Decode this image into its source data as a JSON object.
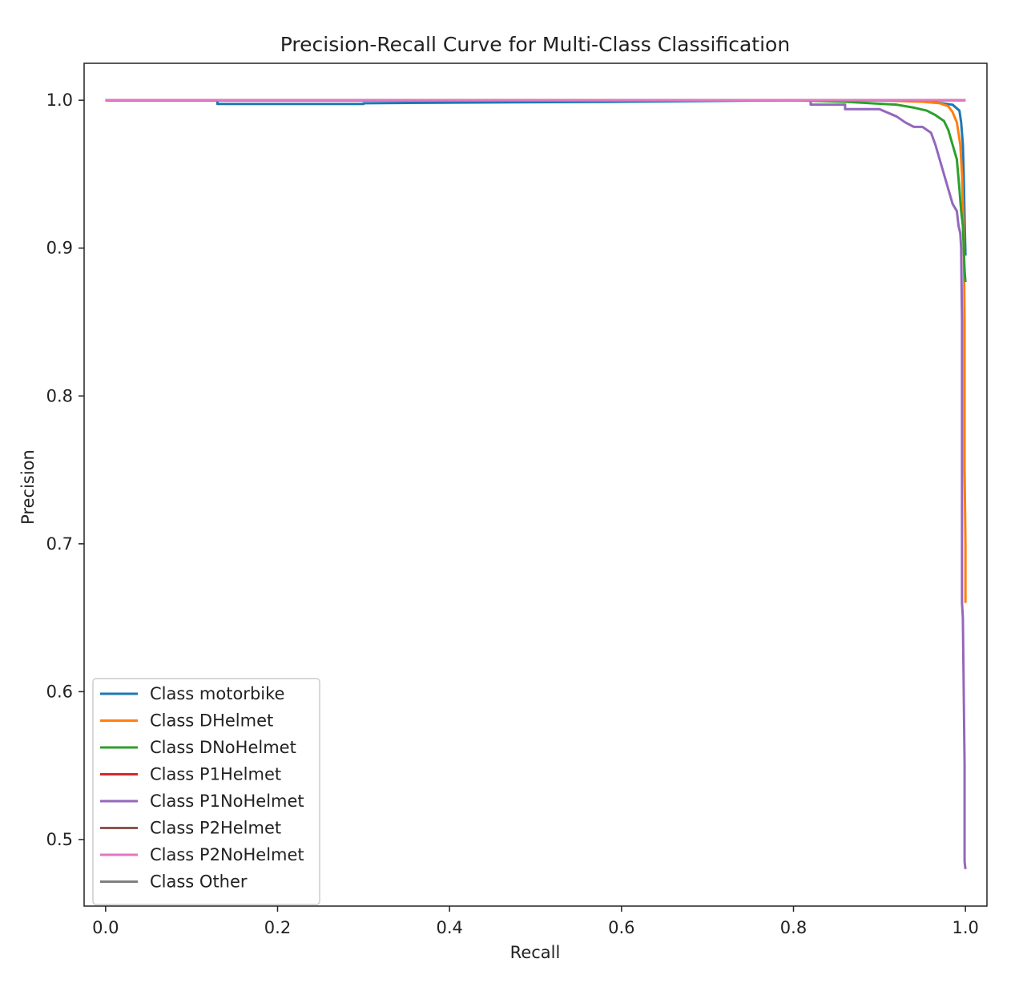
{
  "chart_data": {
    "type": "line",
    "title": "Precision-Recall Curve for Multi-Class Classification",
    "xlabel": "Recall",
    "ylabel": "Precision",
    "xlim": [
      -0.025,
      1.025
    ],
    "ylim": [
      0.455,
      1.025
    ],
    "xticks": [
      0.0,
      0.2,
      0.4,
      0.6,
      0.8,
      1.0
    ],
    "xtick_labels": [
      "0.0",
      "0.2",
      "0.4",
      "0.6",
      "0.8",
      "1.0"
    ],
    "yticks": [
      0.5,
      0.6,
      0.7,
      0.8,
      0.9,
      1.0
    ],
    "ytick_labels": [
      "0.5",
      "0.6",
      "0.7",
      "0.8",
      "0.9",
      "1.0"
    ],
    "grid": false,
    "legend_position": "lower-left",
    "series": [
      {
        "name": "Class motorbike",
        "color": "#1f77b4",
        "x": [
          0.0,
          0.13,
          0.13,
          0.3,
          0.3,
          0.6,
          0.8,
          0.9,
          0.96,
          0.985,
          0.993,
          0.995,
          0.997,
          0.998,
          0.999,
          1.0
        ],
        "y": [
          1.0,
          1.0,
          0.9975,
          0.9975,
          0.998,
          0.999,
          1.0,
          1.0,
          0.999,
          0.997,
          0.993,
          0.985,
          0.97,
          0.95,
          0.92,
          0.895
        ]
      },
      {
        "name": "Class DHelmet",
        "color": "#ff7f0e",
        "x": [
          0.0,
          0.5,
          0.8,
          0.9,
          0.95,
          0.97,
          0.98,
          0.985,
          0.99,
          0.994,
          0.996,
          0.997,
          0.998,
          0.999,
          0.999,
          1.0,
          1.0,
          1.0
        ],
        "y": [
          1.0,
          1.0,
          1.0,
          1.0,
          0.999,
          0.998,
          0.996,
          0.992,
          0.985,
          0.97,
          0.95,
          0.93,
          0.91,
          0.85,
          0.75,
          0.7,
          0.66,
          0.66
        ]
      },
      {
        "name": "Class DNoHelmet",
        "color": "#2ca02c",
        "x": [
          0.0,
          0.5,
          0.8,
          0.86,
          0.89,
          0.92,
          0.94,
          0.955,
          0.965,
          0.975,
          0.98,
          0.985,
          0.99,
          0.993,
          0.995,
          0.997,
          0.998,
          0.999,
          1.0
        ],
        "y": [
          1.0,
          1.0,
          1.0,
          0.999,
          0.998,
          0.997,
          0.995,
          0.993,
          0.99,
          0.986,
          0.98,
          0.97,
          0.96,
          0.94,
          0.925,
          0.915,
          0.9,
          0.885,
          0.877
        ]
      },
      {
        "name": "Class P1Helmet",
        "color": "#d62728",
        "x": [
          0.0,
          1.0
        ],
        "y": [
          1.0,
          1.0
        ]
      },
      {
        "name": "Class P1NoHelmet",
        "color": "#9467bd",
        "x": [
          0.0,
          0.8,
          0.82,
          0.82,
          0.86,
          0.86,
          0.9,
          0.92,
          0.93,
          0.94,
          0.95,
          0.96,
          0.965,
          0.97,
          0.975,
          0.98,
          0.985,
          0.99,
          0.992,
          0.994,
          0.995,
          0.996,
          0.996,
          0.997,
          0.998,
          0.999,
          0.999,
          1.0
        ],
        "y": [
          1.0,
          1.0,
          1.0,
          0.997,
          0.997,
          0.994,
          0.994,
          0.989,
          0.985,
          0.982,
          0.982,
          0.978,
          0.97,
          0.96,
          0.95,
          0.94,
          0.93,
          0.925,
          0.915,
          0.91,
          0.9,
          0.85,
          0.66,
          0.65,
          0.6,
          0.55,
          0.485,
          0.48
        ]
      },
      {
        "name": "Class P2Helmet",
        "color": "#8c564b",
        "x": [
          0.0,
          1.0
        ],
        "y": [
          1.0,
          1.0
        ]
      },
      {
        "name": "Class P2NoHelmet",
        "color": "#e377c2",
        "x": [
          0.0,
          1.0
        ],
        "y": [
          1.0,
          1.0
        ]
      },
      {
        "name": "Class Other",
        "color": "#7f7f7f",
        "x": [],
        "y": []
      }
    ]
  }
}
